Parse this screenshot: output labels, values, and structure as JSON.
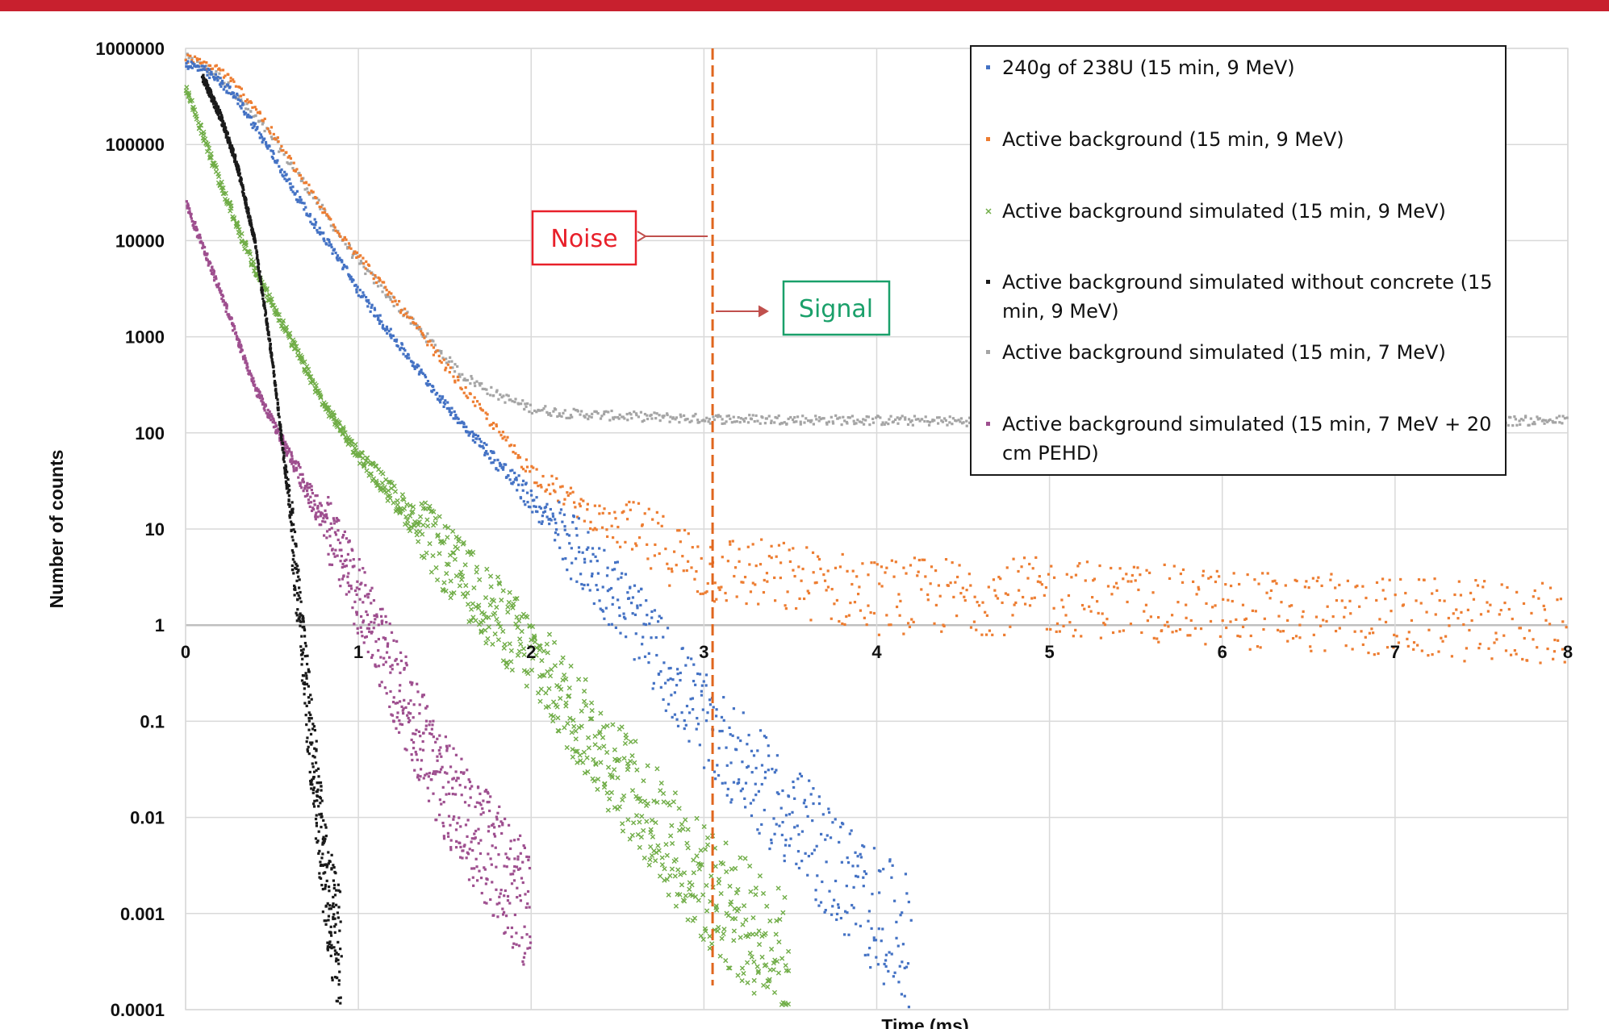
{
  "chart_data": {
    "type": "scatter",
    "title": "",
    "xlabel": "Time (ms)",
    "ylabel": "Number of counts",
    "xlim": [
      0,
      8
    ],
    "ylim": [
      0.0001,
      1000000
    ],
    "yscale": "log",
    "grid": true,
    "legend_position": "top-right",
    "x_ticks": [
      "0",
      "1",
      "2",
      "3",
      "4",
      "5",
      "6",
      "7",
      "8"
    ],
    "y_ticks": [
      "0.0001",
      "0.001",
      "0.01",
      "0.1",
      "1",
      "10",
      "100",
      "1000",
      "10000",
      "100000",
      "1000000"
    ],
    "series": [
      {
        "name": "240g of 238U (15 min, 9 MeV)",
        "color": "#4472c4",
        "marker": "dot",
        "x": [
          0.0,
          0.1,
          0.2,
          0.3,
          0.5,
          0.7,
          0.9,
          1.0,
          1.2,
          1.5,
          2.0,
          2.5,
          3.0,
          3.5,
          4.0,
          4.2
        ],
        "y": [
          700000,
          600000,
          450000,
          300000,
          80000,
          20000,
          6000,
          3000,
          1000,
          200,
          20,
          2,
          0.1,
          0.01,
          0.001,
          0.0005
        ]
      },
      {
        "name": "Active background (15 min, 9 MeV)",
        "color": "#ed7d31",
        "marker": "dot",
        "x": [
          0.0,
          0.2,
          0.4,
          0.6,
          0.8,
          1.0,
          1.3,
          1.6,
          2.0,
          2.4,
          2.8,
          3.0,
          3.5,
          4.0,
          5.0,
          6.0,
          7.0,
          8.0
        ],
        "y": [
          800000,
          600000,
          250000,
          70000,
          20000,
          7000,
          1500,
          300,
          40,
          12,
          6,
          4,
          3,
          2,
          2,
          1.5,
          1.2,
          1
        ]
      },
      {
        "name": "Active background simulated (15 min, 9 MeV)",
        "color": "#70ad47",
        "marker": "x",
        "x": [
          0.0,
          0.2,
          0.4,
          0.6,
          0.8,
          1.0,
          1.5,
          2.0,
          2.5,
          3.0,
          3.5
        ],
        "y": [
          400000,
          40000,
          5000,
          1000,
          200,
          60,
          5,
          0.5,
          0.03,
          0.002,
          0.0003
        ]
      },
      {
        "name": "Active background simulated without concrete (15 min, 9 MeV)",
        "color": "#1a1a1a",
        "marker": "dot",
        "x": [
          0.1,
          0.2,
          0.3,
          0.4,
          0.5,
          0.6,
          0.7,
          0.8,
          0.9
        ],
        "y": [
          500000,
          200000,
          60000,
          10000,
          600,
          20,
          0.2,
          0.003,
          0.0003
        ]
      },
      {
        "name": "Active background simulated (15 min, 7 MeV)",
        "color": "#a5a5a5",
        "marker": "dot",
        "x": [
          0.0,
          0.2,
          0.5,
          0.8,
          1.0,
          1.3,
          1.6,
          1.8,
          2.0,
          2.2,
          2.5,
          3.0,
          4.0,
          5.0,
          6.0,
          7.0,
          8.0
        ],
        "y": [
          800000,
          500000,
          120000,
          20000,
          6000,
          1500,
          400,
          250,
          180,
          160,
          150,
          140,
          135,
          130,
          135,
          130,
          135
        ]
      },
      {
        "name": "Active background simulated (15 min, 7 MeV + 20 cm PEHD)",
        "color": "#9e4f8f",
        "marker": "dot",
        "x": [
          0.0,
          0.2,
          0.4,
          0.6,
          0.8,
          1.0,
          1.2,
          1.5,
          2.0
        ],
        "y": [
          25000,
          3000,
          300,
          60,
          12,
          2,
          0.3,
          0.02,
          0.001
        ]
      }
    ]
  },
  "annotations": {
    "noise_label": "Noise",
    "noise_color": "#e8202a",
    "signal_label": "Signal",
    "signal_color": "#1aa06a",
    "divider_x": 3.05,
    "divider_color": "#e0661e"
  },
  "colors": {
    "top_bar": "#c8202e"
  }
}
